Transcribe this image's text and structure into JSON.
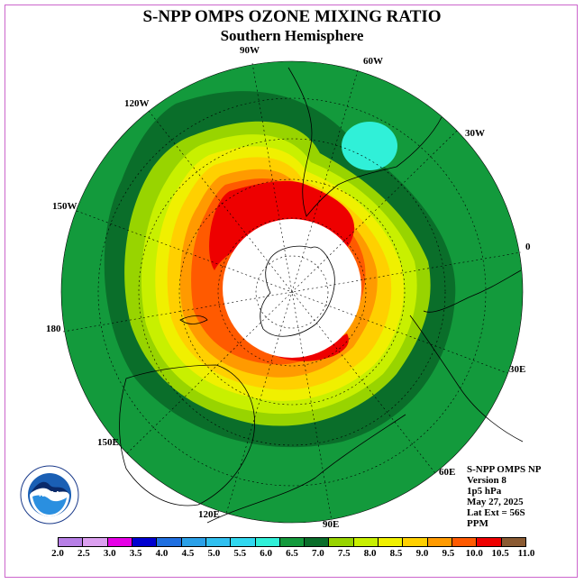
{
  "title": "S-NPP OMPS OZONE MIXING RATIO",
  "subtitle": "Southern Hemisphere",
  "longitude_labels": [
    "90W",
    "60W",
    "120W",
    "30W",
    "150W",
    "0",
    "180",
    "30E",
    "150E",
    "60E",
    "120E",
    "90E"
  ],
  "info": {
    "line1": "S-NPP OMPS NP",
    "line2": "Version 8",
    "line3": "1p5 hPa",
    "line4": "May 27, 2025",
    "line5": "Lat Ext = 56S",
    "line6": "PPM"
  },
  "logo": {
    "name": "NOAA",
    "ring_text": "NATIONAL OCEANIC AND ATMOSPHERIC ADMINISTRATION U.S. DEPARTMENT OF COMMERCE"
  },
  "colorbar": {
    "labels": [
      "2.0",
      "2.5",
      "3.0",
      "3.5",
      "4.0",
      "4.5",
      "5.0",
      "5.5",
      "6.0",
      "6.5",
      "7.0",
      "7.5",
      "8.0",
      "8.5",
      "9.0",
      "9.5",
      "10.0",
      "10.5",
      "11.0"
    ],
    "colors": [
      "#b77fe6",
      "#dca0f0",
      "#e600e6",
      "#0000d0",
      "#1f6fe0",
      "#2aa0e8",
      "#30c0f0",
      "#30d8f0",
      "#30f0d8",
      "#139a3c",
      "#0a6e2a",
      "#98d400",
      "#c8f000",
      "#f0f000",
      "#ffd000",
      "#ff9a00",
      "#ff5a00",
      "#ee0000",
      "#8a5a32"
    ]
  },
  "map_colors": {
    "outer": "#139a3c",
    "dark_ring": "#0a6e2a",
    "lime": "#98d400",
    "yellow_green": "#c8f000",
    "yellow": "#f0f000",
    "gold": "#ffd000",
    "orange": "#ff9a00",
    "dark_orange": "#ff5a00",
    "red": "#ee0000",
    "cyan": "#30f0d8",
    "polar_cap": "#ffffff"
  }
}
